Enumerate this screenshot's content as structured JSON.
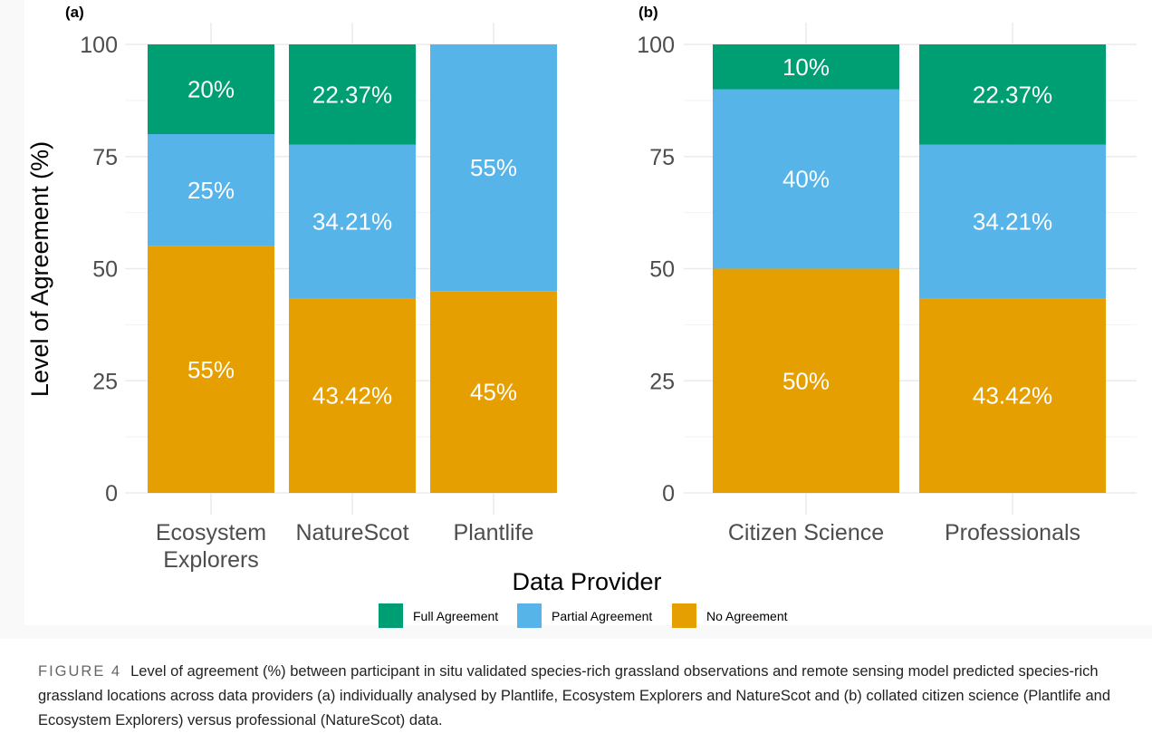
{
  "chart_data": [
    {
      "type": "bar",
      "stacked": true,
      "panel_label": "(a)",
      "categories": [
        "Ecosystem Explorers",
        "NatureScot",
        "Plantlife"
      ],
      "category_lines": [
        [
          "Ecosystem",
          "Explorers"
        ],
        [
          "NatureScot"
        ],
        [
          "Plantlife"
        ]
      ],
      "series": [
        {
          "name": "No Agreement",
          "color": "#E69F00",
          "values": [
            55,
            43.42,
            45
          ],
          "labels": [
            "55%",
            "43.42%",
            "45%"
          ]
        },
        {
          "name": "Partial Agreement",
          "color": "#56B4E9",
          "values": [
            25,
            34.21,
            55
          ],
          "labels": [
            "25%",
            "34.21%",
            "55%"
          ]
        },
        {
          "name": "Full Agreement",
          "color": "#009E73",
          "values": [
            20,
            22.37,
            0
          ],
          "labels": [
            "20%",
            "22.37%",
            ""
          ]
        }
      ],
      "ylabel": "Level of Agreement (%)",
      "xlabel": "Data Provider",
      "ylim": [
        0,
        100
      ],
      "yticks": [
        0,
        25,
        50,
        75,
        100
      ],
      "grid": true
    },
    {
      "type": "bar",
      "stacked": true,
      "panel_label": "(b)",
      "categories": [
        "Citizen Science",
        "Professionals"
      ],
      "category_lines": [
        [
          "Citizen Science"
        ],
        [
          "Professionals"
        ]
      ],
      "series": [
        {
          "name": "No Agreement",
          "color": "#E69F00",
          "values": [
            50,
            43.42
          ],
          "labels": [
            "50%",
            "43.42%"
          ]
        },
        {
          "name": "Partial Agreement",
          "color": "#56B4E9",
          "values": [
            40,
            34.21
          ],
          "labels": [
            "40%",
            "34.21%"
          ]
        },
        {
          "name": "Full Agreement",
          "color": "#009E73",
          "values": [
            10,
            22.37
          ],
          "labels": [
            "10%",
            "22.37%"
          ]
        }
      ],
      "ylabel": "",
      "xlabel": "Data Provider",
      "ylim": [
        0,
        100
      ],
      "yticks": [
        0,
        25,
        50,
        75,
        100
      ],
      "grid": true
    }
  ],
  "legend": {
    "title": "Data Provider",
    "placement": "bottom-center",
    "items": [
      {
        "label": "Full Agreement",
        "color": "#009E73"
      },
      {
        "label": "Partial Agreement",
        "color": "#56B4E9"
      },
      {
        "label": "No Agreement",
        "color": "#E69F00"
      }
    ]
  },
  "caption": {
    "label": "FIGURE 4",
    "text": "Level of agreement (%) between participant in situ validated species-rich grassland observations and remote sensing model predicted species-rich grassland locations across data providers (a) individually analysed by Plantlife, Ecosystem Explorers and NatureScot and (b) collated citizen science (Plantlife and Ecosystem Explorers) versus professional (NatureScot) data."
  }
}
